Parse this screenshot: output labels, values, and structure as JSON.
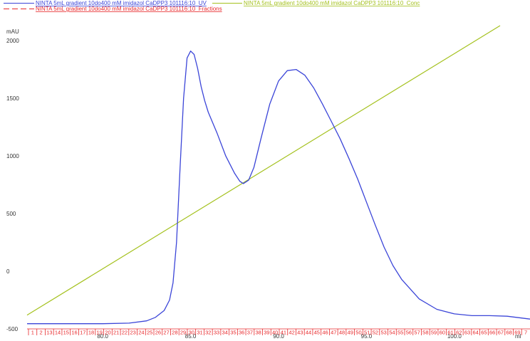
{
  "legend": {
    "uv": "NINTA 5mL gradient 10do400 mM imidazol CaDPP3 101116:10_UV",
    "fractions": "NINTA 5mL gradient 10do400 mM imidazol CaDPP3 101116:10_Fractions",
    "conc": "NINTA 5mL gradient 10do400 mM imidazol CaDPP3 101116:10_Conc"
  },
  "colors": {
    "uv": "#3b45d8",
    "fractions": "#e8272a",
    "conc": "#a4c11d"
  },
  "chart_data": {
    "type": "line",
    "ylabel": "mAU",
    "xlabel": "ml",
    "xlim": [
      75.7,
      104.3
    ],
    "ylim": [
      -500,
      2050
    ],
    "xticks": [
      {
        "value": 80,
        "label": "80.0"
      },
      {
        "value": 85,
        "label": "85.0"
      },
      {
        "value": 90,
        "label": "90.0"
      },
      {
        "value": 95,
        "label": "95.0"
      },
      {
        "value": 100,
        "label": "100.0"
      }
    ],
    "yticks": [
      {
        "value": 2000,
        "label": "2000"
      },
      {
        "value": 1500,
        "label": "1500"
      },
      {
        "value": 1000,
        "label": "1000"
      },
      {
        "value": 500,
        "label": "500"
      },
      {
        "value": 0,
        "label": "0"
      },
      {
        "value": -500,
        "label": "-500"
      }
    ],
    "series": [
      {
        "name": "NINTA 5mL gradient 10do400 mM imidazol CaDPP3 101116:10_UV",
        "x": [
          75.7,
          78.0,
          80.0,
          81.5,
          82.5,
          83.0,
          83.5,
          83.8,
          84.0,
          84.2,
          84.4,
          84.6,
          84.8,
          85.0,
          85.2,
          85.4,
          85.6,
          85.8,
          86.0,
          86.5,
          87.0,
          87.5,
          87.8,
          88.0,
          88.3,
          88.6,
          89.0,
          89.5,
          90.0,
          90.5,
          91.0,
          91.5,
          92.0,
          92.5,
          93.0,
          93.5,
          94.0,
          94.5,
          95.0,
          95.5,
          96.0,
          96.5,
          97.0,
          98.0,
          99.0,
          100.0,
          101.0,
          102.0,
          103.0,
          104.3
        ],
        "y": [
          -455,
          -455,
          -455,
          -450,
          -430,
          -400,
          -340,
          -250,
          -100,
          250,
          900,
          1500,
          1850,
          1910,
          1880,
          1760,
          1600,
          1480,
          1380,
          1200,
          1000,
          850,
          780,
          760,
          790,
          900,
          1150,
          1450,
          1650,
          1740,
          1750,
          1700,
          1590,
          1450,
          1300,
          1150,
          980,
          800,
          600,
          400,
          210,
          50,
          -70,
          -240,
          -330,
          -370,
          -385,
          -385,
          -390,
          -415
        ]
      },
      {
        "name": "NINTA 5mL gradient 10do400 mM imidazol CaDPP3 101116:10_Conc",
        "x": [
          75.7,
          102.6
        ],
        "y": [
          -380,
          2130
        ]
      }
    ],
    "fractions": [
      "1",
      "2",
      "13",
      "14",
      "15",
      "16",
      "17",
      "18",
      "19",
      "20",
      "21",
      "22",
      "23",
      "24",
      "25",
      "26",
      "27",
      "28",
      "29",
      "30",
      "31",
      "32",
      "33",
      "34",
      "35",
      "36",
      "37",
      "38",
      "39",
      "40",
      "41",
      "42",
      "43",
      "44",
      "45",
      "46",
      "47",
      "48",
      "49",
      "50",
      "51",
      "52",
      "53",
      "54",
      "55",
      "56",
      "57",
      "58",
      "59",
      "60",
      "61",
      "62",
      "63",
      "64",
      "65",
      "66",
      "67",
      "68",
      "69",
      "7"
    ]
  }
}
